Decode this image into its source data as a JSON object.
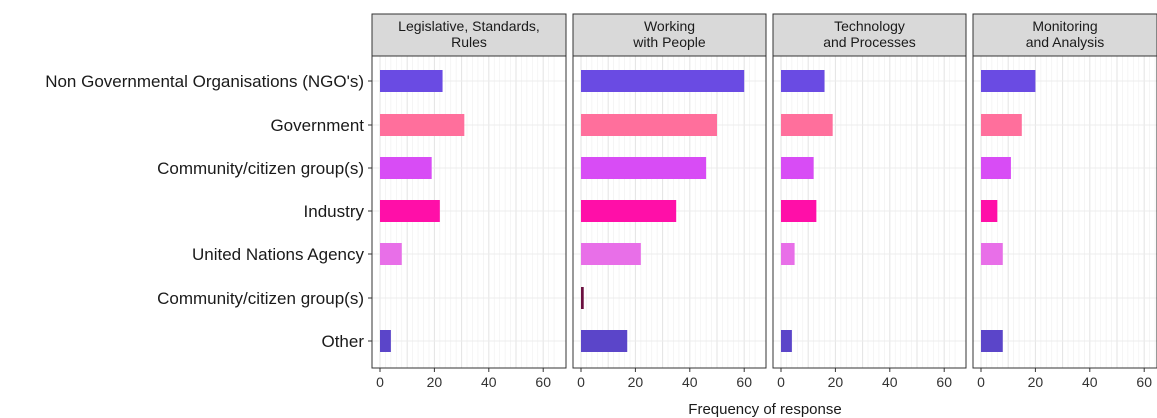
{
  "chart_data": {
    "type": "bar",
    "orientation": "horizontal",
    "faceted": true,
    "xlabel": "Frequency of response",
    "xlim": [
      0,
      65
    ],
    "x_ticks": [
      0,
      20,
      40,
      60
    ],
    "grid": true,
    "categories": [
      "Non Governmental Organisations (NGO's)",
      "Government",
      "Community/citizen group(s)",
      "Industry",
      "United Nations Agency",
      "Community/citizen group(s)",
      "Other"
    ],
    "bar_colors": [
      "#6a4be3",
      "#ff6f9c",
      "#d84cf5",
      "#ff0fa8",
      "#e86fe8",
      "#6b1040",
      "#5b45c9"
    ],
    "facets": [
      {
        "title_lines": [
          "Legislative, Standards,",
          "Rules"
        ],
        "values": [
          23,
          31,
          19,
          22,
          8,
          0,
          4
        ]
      },
      {
        "title_lines": [
          "Working",
          "with People"
        ],
        "values": [
          60,
          50,
          46,
          35,
          22,
          1,
          17
        ]
      },
      {
        "title_lines": [
          "Technology",
          "and Processes"
        ],
        "values": [
          16,
          19,
          12,
          13,
          5,
          0,
          4
        ]
      },
      {
        "title_lines": [
          "Monitoring",
          "and Analysis"
        ],
        "values": [
          20,
          15,
          11,
          6,
          8,
          0,
          8
        ]
      }
    ]
  }
}
